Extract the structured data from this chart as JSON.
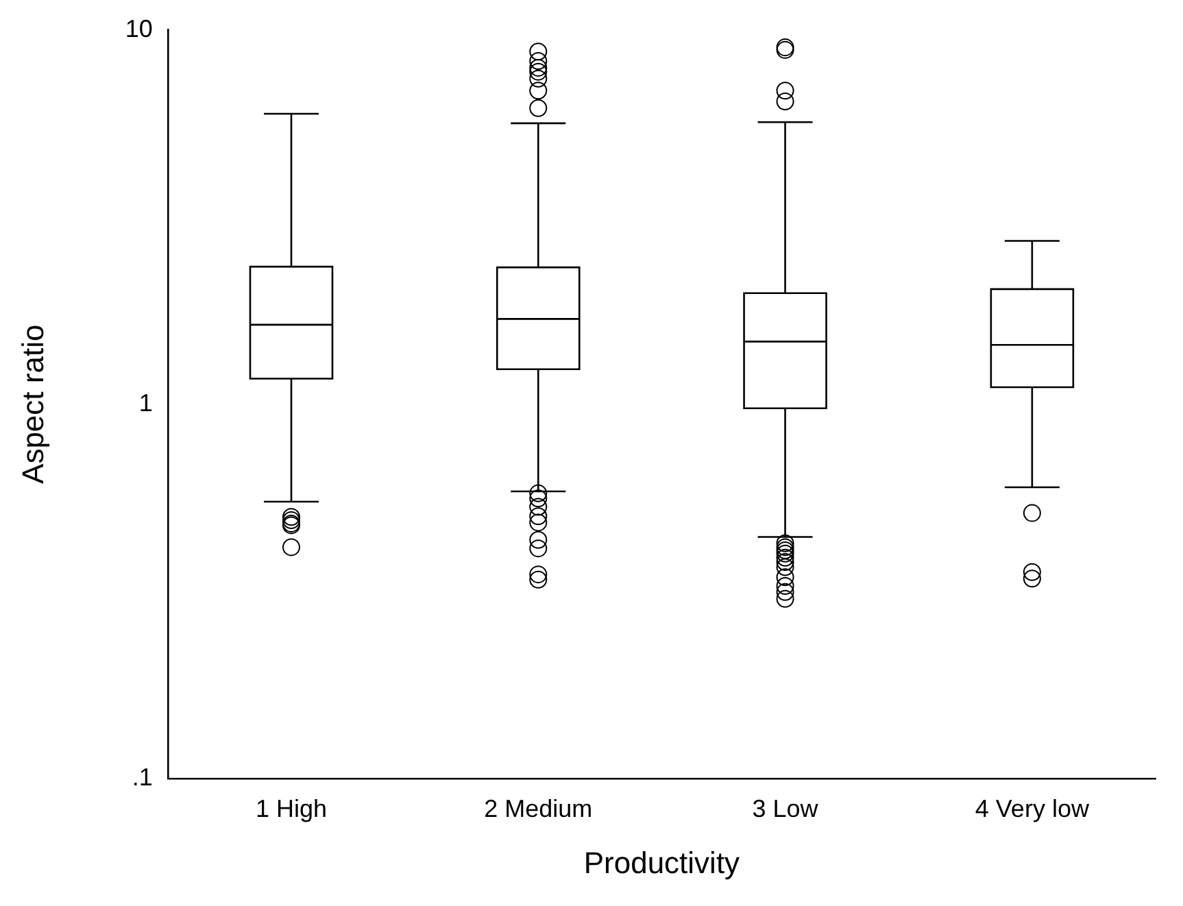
{
  "chart_data": {
    "type": "box",
    "xlabel": "Productivity",
    "ylabel": "Aspect ratio",
    "categories": [
      "1 High",
      "2 Medium",
      "3 Low",
      "4 Very low"
    ],
    "boxes": [
      {
        "low": 0.549,
        "q1": 1.17,
        "median": 1.63,
        "q3": 2.33,
        "high": 5.97,
        "outliers": [
          0.5,
          0.49,
          0.48,
          0.475,
          0.415
        ]
      },
      {
        "low": 0.585,
        "q1": 1.24,
        "median": 1.69,
        "q3": 2.32,
        "high": 5.63,
        "outliers": [
          8.75,
          8.26,
          7.92,
          7.73,
          7.41,
          6.88,
          6.18,
          0.578,
          0.56,
          0.532,
          0.502,
          0.483,
          0.434,
          0.412,
          0.351,
          0.34
        ]
      },
      {
        "low": 0.442,
        "q1": 0.975,
        "median": 1.47,
        "q3": 1.98,
        "high": 5.67,
        "outliers": [
          8.98,
          8.84,
          6.88,
          6.44,
          0.425,
          0.415,
          0.407,
          0.399,
          0.389,
          0.379,
          0.367,
          0.345,
          0.327,
          0.315,
          0.302
        ]
      },
      {
        "low": 0.6,
        "q1": 1.11,
        "median": 1.44,
        "q3": 2.03,
        "high": 2.73,
        "outliers": [
          0.512,
          0.356,
          0.342
        ]
      }
    ],
    "log": true,
    "ylim": [
      0.1,
      10
    ],
    "yticks": [
      {
        "value": 0.1,
        "label": ".1"
      },
      1,
      10
    ],
    "grid": false,
    "legend": false,
    "marker": "circle"
  }
}
